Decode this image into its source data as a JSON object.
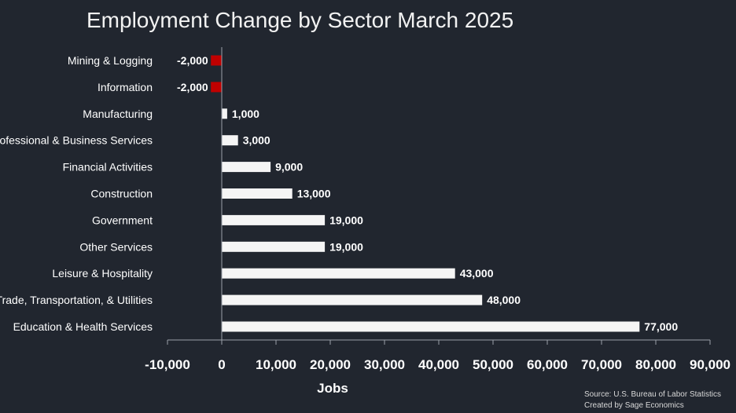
{
  "chart_data": {
    "type": "bar",
    "orientation": "horizontal",
    "title": "Employment Change by Sector March 2025",
    "xlabel": "Jobs",
    "ylabel": "",
    "xlim": [
      -10000,
      90000
    ],
    "x_ticks": [
      -10000,
      0,
      10000,
      20000,
      30000,
      40000,
      50000,
      60000,
      70000,
      80000,
      90000
    ],
    "x_tick_labels": [
      "-10,000",
      "0",
      "10,000",
      "20,000",
      "30,000",
      "40,000",
      "50,000",
      "60,000",
      "70,000",
      "80,000",
      "90,000"
    ],
    "grid": false,
    "categories": [
      "Mining & Logging",
      "Information",
      "Manufacturing",
      "Professional & Business Services",
      "Financial Activities",
      "Construction",
      "Government",
      "Other Services",
      "Leisure & Hospitality",
      "Trade, Transportation, & Utilities",
      "Education & Health Services"
    ],
    "values": [
      -2000,
      -2000,
      1000,
      3000,
      9000,
      13000,
      19000,
      19000,
      43000,
      48000,
      77000
    ],
    "data_labels": [
      "-2,000",
      "-2,000",
      "1,000",
      "3,000",
      "9,000",
      "13,000",
      "19,000",
      "19,000",
      "43,000",
      "48,000",
      "77,000"
    ],
    "colors": {
      "positive": "#f5f5f5",
      "negative": "#c00000",
      "background": "#21262f",
      "axis": "#9aa0a8"
    }
  },
  "source": {
    "line1": "Source: U.S. Bureau of Labor Statistics",
    "line2": "Created by Sage Economics"
  }
}
